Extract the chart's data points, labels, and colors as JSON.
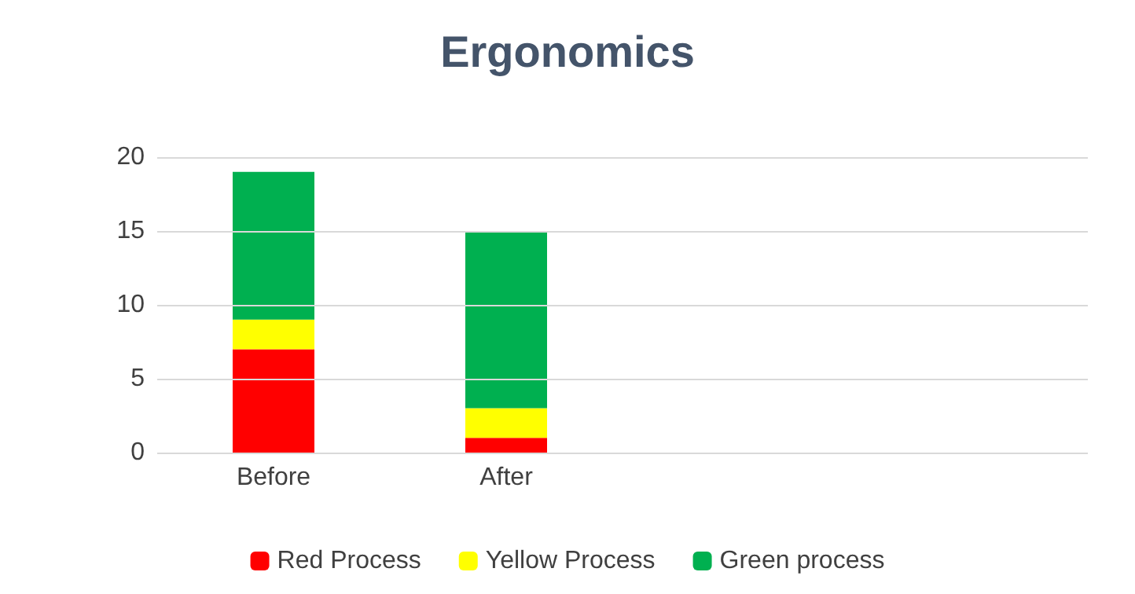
{
  "chart_data": {
    "type": "bar",
    "title": "Ergonomics",
    "categories": [
      "Before",
      "After",
      null,
      null
    ],
    "stacked": true,
    "series": [
      {
        "name": "Red Process",
        "color": "#ff0000",
        "values": [
          7,
          1,
          null,
          null
        ]
      },
      {
        "name": "Yellow Process",
        "color": "#ffff00",
        "values": [
          2,
          2,
          null,
          null
        ]
      },
      {
        "name": "Green process",
        "color": "#00b050",
        "values": [
          10,
          12,
          null,
          null
        ]
      }
    ],
    "ylim": [
      0,
      20
    ],
    "yticks": [
      0,
      5,
      10,
      15,
      20
    ],
    "grid": "y",
    "legend": "bottom"
  }
}
